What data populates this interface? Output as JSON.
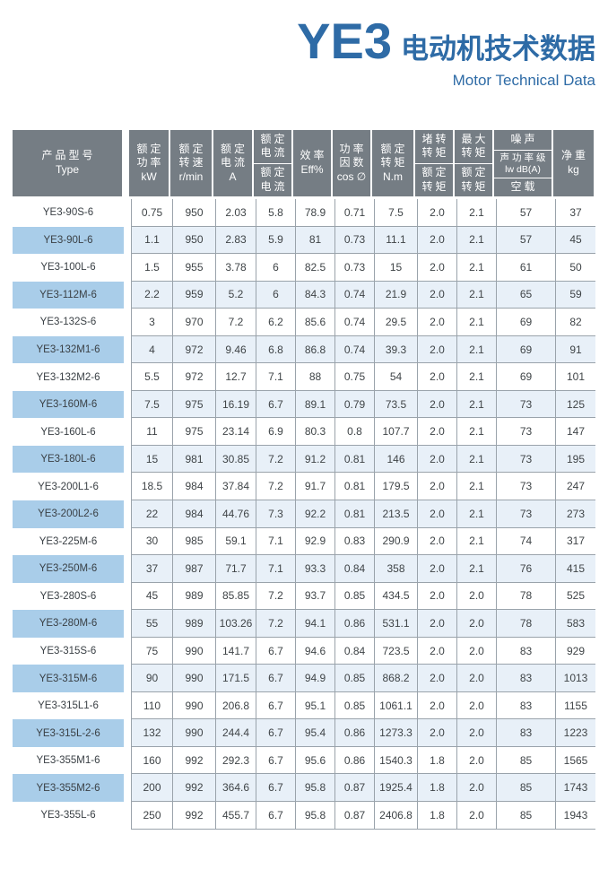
{
  "header": {
    "series": "YE3",
    "title_cn": "电动机技术数据",
    "subtitle": "Motor Technical Data"
  },
  "colors": {
    "accent_blue": "#2e6ba6",
    "table_header_bg": "#757d84",
    "highlight_type_cell": "#a9cde9",
    "highlight_data_cell": "#e8f0f8",
    "grid_line": "#9aa3ab"
  },
  "table": {
    "columns": [
      {
        "id": "type",
        "header_type": "lines",
        "lines": [
          "产品型号",
          "Type"
        ]
      },
      {
        "id": "rated_power",
        "header_type": "lines",
        "lines": [
          "额定",
          "功率",
          "kW"
        ]
      },
      {
        "id": "rated_speed",
        "header_type": "lines",
        "lines": [
          "额定",
          "转速",
          "r/min"
        ]
      },
      {
        "id": "rated_current",
        "header_type": "lines",
        "lines": [
          "额定",
          "电流",
          "A"
        ]
      },
      {
        "id": "current_ratio",
        "header_type": "fraction",
        "top": [
          "额定",
          "电流"
        ],
        "bottom": [
          "额定",
          "电流"
        ]
      },
      {
        "id": "efficiency",
        "header_type": "lines",
        "lines": [
          "效率",
          "Eff%"
        ]
      },
      {
        "id": "power_factor",
        "header_type": "lines",
        "lines": [
          "功率",
          "因数",
          "cos ∅"
        ]
      },
      {
        "id": "rated_torque",
        "header_type": "lines",
        "lines": [
          "额定",
          "转矩",
          "N.m"
        ]
      },
      {
        "id": "locked_rotor_torque_ratio",
        "header_type": "fraction",
        "top": [
          "堵转",
          "转矩"
        ],
        "bottom": [
          "额定",
          "转矩"
        ]
      },
      {
        "id": "max_torque_ratio",
        "header_type": "fraction",
        "top": [
          "最大",
          "转矩"
        ],
        "bottom": [
          "额定",
          "转矩"
        ]
      },
      {
        "id": "noise",
        "header_type": "stack",
        "sections": [
          [
            "噪声"
          ],
          [
            "声功率级",
            "lw dB(A)"
          ],
          [
            "空载"
          ]
        ]
      },
      {
        "id": "net_weight",
        "header_type": "lines",
        "lines": [
          "净重",
          "kg"
        ]
      }
    ],
    "rows": [
      {
        "type": "YE3-90S-6",
        "highlight": false,
        "values": [
          "0.75",
          "950",
          "2.03",
          "5.8",
          "78.9",
          "0.71",
          "7.5",
          "2.0",
          "2.1",
          "57",
          "37"
        ]
      },
      {
        "type": "YE3-90L-6",
        "highlight": true,
        "values": [
          "1.1",
          "950",
          "2.83",
          "5.9",
          "81",
          "0.73",
          "11.1",
          "2.0",
          "2.1",
          "57",
          "45"
        ]
      },
      {
        "type": "YE3-100L-6",
        "highlight": false,
        "values": [
          "1.5",
          "955",
          "3.78",
          "6",
          "82.5",
          "0.73",
          "15",
          "2.0",
          "2.1",
          "61",
          "50"
        ]
      },
      {
        "type": "YE3-112M-6",
        "highlight": true,
        "values": [
          "2.2",
          "959",
          "5.2",
          "6",
          "84.3",
          "0.74",
          "21.9",
          "2.0",
          "2.1",
          "65",
          "59"
        ]
      },
      {
        "type": "YE3-132S-6",
        "highlight": false,
        "values": [
          "3",
          "970",
          "7.2",
          "6.2",
          "85.6",
          "0.74",
          "29.5",
          "2.0",
          "2.1",
          "69",
          "82"
        ]
      },
      {
        "type": "YE3-132M1-6",
        "highlight": true,
        "values": [
          "4",
          "972",
          "9.46",
          "6.8",
          "86.8",
          "0.74",
          "39.3",
          "2.0",
          "2.1",
          "69",
          "91"
        ]
      },
      {
        "type": "YE3-132M2-6",
        "highlight": false,
        "values": [
          "5.5",
          "972",
          "12.7",
          "7.1",
          "88",
          "0.75",
          "54",
          "2.0",
          "2.1",
          "69",
          "101"
        ]
      },
      {
        "type": "YE3-160M-6",
        "highlight": true,
        "values": [
          "7.5",
          "975",
          "16.19",
          "6.7",
          "89.1",
          "0.79",
          "73.5",
          "2.0",
          "2.1",
          "73",
          "125"
        ]
      },
      {
        "type": "YE3-160L-6",
        "highlight": false,
        "values": [
          "11",
          "975",
          "23.14",
          "6.9",
          "80.3",
          "0.8",
          "107.7",
          "2.0",
          "2.1",
          "73",
          "147"
        ]
      },
      {
        "type": "YE3-180L-6",
        "highlight": true,
        "values": [
          "15",
          "981",
          "30.85",
          "7.2",
          "91.2",
          "0.81",
          "146",
          "2.0",
          "2.1",
          "73",
          "195"
        ]
      },
      {
        "type": "YE3-200L1-6",
        "highlight": false,
        "values": [
          "18.5",
          "984",
          "37.84",
          "7.2",
          "91.7",
          "0.81",
          "179.5",
          "2.0",
          "2.1",
          "73",
          "247"
        ]
      },
      {
        "type": "YE3-200L2-6",
        "highlight": true,
        "values": [
          "22",
          "984",
          "44.76",
          "7.3",
          "92.2",
          "0.81",
          "213.5",
          "2.0",
          "2.1",
          "73",
          "273"
        ]
      },
      {
        "type": "YE3-225M-6",
        "highlight": false,
        "values": [
          "30",
          "985",
          "59.1",
          "7.1",
          "92.9",
          "0.83",
          "290.9",
          "2.0",
          "2.1",
          "74",
          "317"
        ]
      },
      {
        "type": "YE3-250M-6",
        "highlight": true,
        "values": [
          "37",
          "987",
          "71.7",
          "7.1",
          "93.3",
          "0.84",
          "358",
          "2.0",
          "2.1",
          "76",
          "415"
        ]
      },
      {
        "type": "YE3-280S-6",
        "highlight": false,
        "values": [
          "45",
          "989",
          "85.85",
          "7.2",
          "93.7",
          "0.85",
          "434.5",
          "2.0",
          "2.0",
          "78",
          "525"
        ]
      },
      {
        "type": "YE3-280M-6",
        "highlight": true,
        "values": [
          "55",
          "989",
          "103.26",
          "7.2",
          "94.1",
          "0.86",
          "531.1",
          "2.0",
          "2.0",
          "78",
          "583"
        ]
      },
      {
        "type": "YE3-315S-6",
        "highlight": false,
        "values": [
          "75",
          "990",
          "141.7",
          "6.7",
          "94.6",
          "0.84",
          "723.5",
          "2.0",
          "2.0",
          "83",
          "929"
        ]
      },
      {
        "type": "YE3-315M-6",
        "highlight": true,
        "values": [
          "90",
          "990",
          "171.5",
          "6.7",
          "94.9",
          "0.85",
          "868.2",
          "2.0",
          "2.0",
          "83",
          "1013"
        ]
      },
      {
        "type": "YE3-315L1-6",
        "highlight": false,
        "values": [
          "110",
          "990",
          "206.8",
          "6.7",
          "95.1",
          "0.85",
          "1061.1",
          "2.0",
          "2.0",
          "83",
          "1155"
        ]
      },
      {
        "type": "YE3-315L-2-6",
        "highlight": true,
        "values": [
          "132",
          "990",
          "244.4",
          "6.7",
          "95.4",
          "0.86",
          "1273.3",
          "2.0",
          "2.0",
          "83",
          "1223"
        ]
      },
      {
        "type": "YE3-355M1-6",
        "highlight": false,
        "values": [
          "160",
          "992",
          "292.3",
          "6.7",
          "95.6",
          "0.86",
          "1540.3",
          "1.8",
          "2.0",
          "85",
          "1565"
        ]
      },
      {
        "type": "YE3-355M2-6",
        "highlight": true,
        "values": [
          "200",
          "992",
          "364.6",
          "6.7",
          "95.8",
          "0.87",
          "1925.4",
          "1.8",
          "2.0",
          "85",
          "1743"
        ]
      },
      {
        "type": "YE3-355L-6",
        "highlight": false,
        "values": [
          "250",
          "992",
          "455.7",
          "6.7",
          "95.8",
          "0.87",
          "2406.8",
          "1.8",
          "2.0",
          "85",
          "1943"
        ]
      }
    ]
  }
}
